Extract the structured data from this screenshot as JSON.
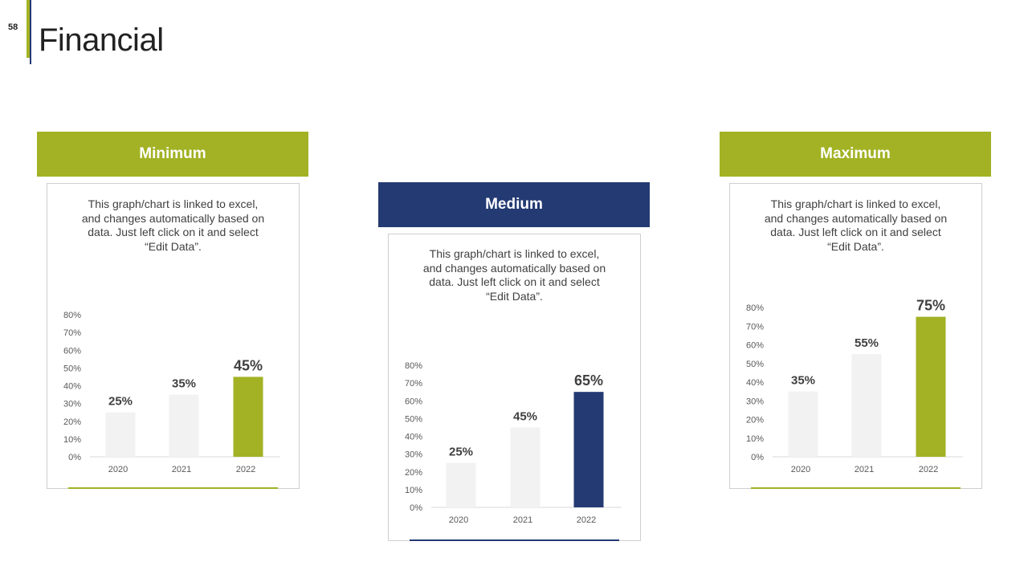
{
  "slide": {
    "number": "58",
    "title": "Financial"
  },
  "colors": {
    "green": "#a2b224",
    "navy": "#243a73",
    "grey_bar": "#f2f2f2",
    "axis": "#d9d9d9"
  },
  "panels": [
    {
      "header": "Minimum",
      "description": "This graph/chart is linked to excel, and changes automatically based on data. Just left click on it and select “Edit Data”."
    },
    {
      "header": "Medium",
      "description": "This graph/chart is linked to excel, and changes automatically based on data. Just left click on it and select “Edit Data”."
    },
    {
      "header": "Maximum",
      "description": "This graph/chart is linked to excel, and changes automatically based on data. Just left click on it and select “Edit Data”."
    }
  ],
  "chart_data": [
    {
      "type": "bar",
      "categories": [
        "2020",
        "2021",
        "2022"
      ],
      "values": [
        25,
        35,
        45
      ],
      "value_labels": [
        "25%",
        "35%",
        "45%"
      ],
      "ylim": [
        0,
        80
      ],
      "yticks": [
        "0%",
        "10%",
        "20%",
        "30%",
        "40%",
        "50%",
        "60%",
        "70%",
        "80%"
      ],
      "highlight_color": "#a2b224",
      "grid": false
    },
    {
      "type": "bar",
      "categories": [
        "2020",
        "2021",
        "2022"
      ],
      "values": [
        25,
        45,
        65
      ],
      "value_labels": [
        "25%",
        "45%",
        "65%"
      ],
      "ylim": [
        0,
        80
      ],
      "yticks": [
        "0%",
        "10%",
        "20%",
        "30%",
        "40%",
        "50%",
        "60%",
        "70%",
        "80%"
      ],
      "highlight_color": "#243a73",
      "grid": false
    },
    {
      "type": "bar",
      "categories": [
        "2020",
        "2021",
        "2022"
      ],
      "values": [
        35,
        55,
        75
      ],
      "value_labels": [
        "35%",
        "55%",
        "75%"
      ],
      "ylim": [
        0,
        80
      ],
      "yticks": [
        "0%",
        "10%",
        "20%",
        "30%",
        "40%",
        "50%",
        "60%",
        "70%",
        "80%"
      ],
      "highlight_color": "#a2b224",
      "grid": false
    }
  ]
}
